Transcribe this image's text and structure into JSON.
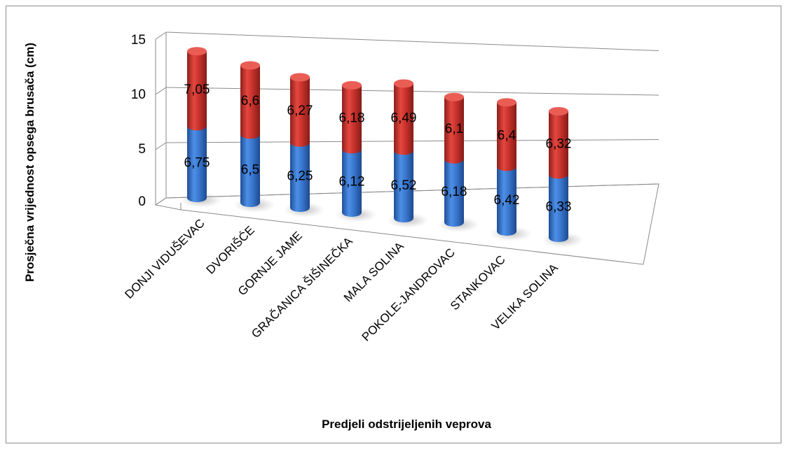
{
  "chart_data": {
    "type": "bar",
    "stacked": true,
    "style": "3d-cylinder",
    "title": "",
    "xlabel": "Predjeli odstrijeljenih veprova",
    "ylabel": "Prosječna vrijednost opsega brusača (cm)",
    "ylim": [
      0,
      15
    ],
    "yticks": [
      "0",
      "5",
      "10",
      "15"
    ],
    "grid": true,
    "categories": [
      "DONJI VIDUŠEVAC",
      "DVORIŠĆE",
      "GORNJE JAME",
      "GRAČANICA ŠIŠINEČKA",
      "MALA SOLINA",
      "POKOLE-JANDROVAC",
      "STANKOVAC",
      "VELIKA SOLINA"
    ],
    "series": [
      {
        "values": [
          6.75,
          6.5,
          6.25,
          6.12,
          6.52,
          6.18,
          6.42,
          6.33
        ],
        "labels": [
          "6,75",
          "6,5",
          "6,25",
          "6,12",
          "6,52",
          "6,18",
          "6,42",
          "6,33"
        ],
        "color": "#3a78d0"
      },
      {
        "values": [
          7.05,
          6.6,
          6.27,
          6.18,
          6.49,
          6.1,
          6.4,
          6.32
        ],
        "labels": [
          "7,05",
          "6,6",
          "6,27",
          "6,18",
          "6,49",
          "6,1",
          "6,4",
          "6,32"
        ],
        "color": "#c8322c"
      }
    ]
  }
}
